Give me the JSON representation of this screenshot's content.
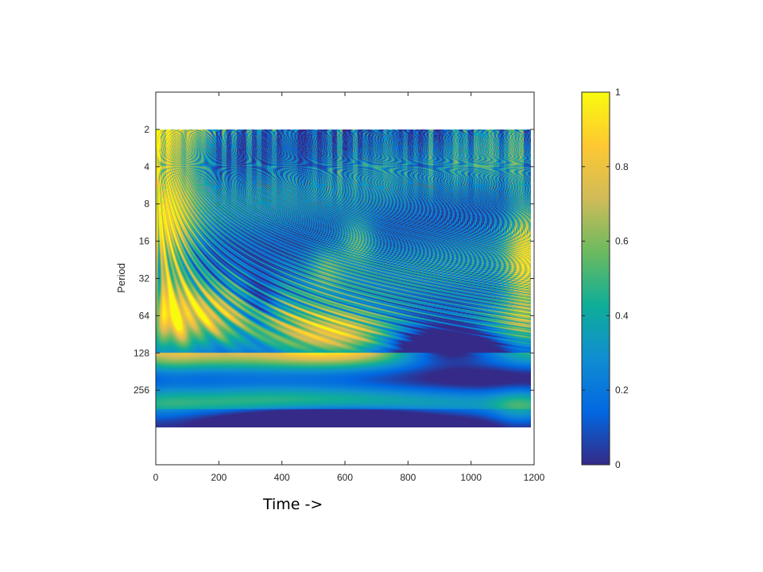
{
  "chart_data": {
    "type": "heatmap",
    "title": "",
    "xlabel": "Time ->",
    "ylabel": "Period",
    "x_range": [
      0,
      1200
    ],
    "x_ticks": [
      0,
      200,
      400,
      600,
      800,
      1000,
      1200
    ],
    "x_tick_labels": [
      "0",
      "200",
      "400",
      "600",
      "800",
      "1000",
      "1200"
    ],
    "y_scale": "log2",
    "y_range": [
      1,
      1024
    ],
    "y_ticks": [
      2,
      4,
      8,
      16,
      32,
      64,
      128,
      256
    ],
    "y_tick_labels": [
      "2",
      "4",
      "8",
      "16",
      "32",
      "64",
      "128",
      "256"
    ],
    "y_reversed": true,
    "data_extent": {
      "time": [
        0,
        1190
      ],
      "period": [
        2,
        512
      ]
    },
    "value_range": [
      0,
      1
    ],
    "colormap": "parula",
    "colormap_stops": [
      "#352a87",
      "#0268e1",
      "#108ed2",
      "#0fae99",
      "#6cba5f",
      "#d1bb59",
      "#fec832",
      "#f9fb0e"
    ],
    "colorbar": {
      "ticks": [
        0,
        0.2,
        0.4,
        0.6,
        0.8,
        1
      ],
      "tick_labels": [
        "0",
        "0.2",
        "0.4",
        "0.6",
        "0.8",
        "1"
      ]
    },
    "features": [
      {
        "description": "high coherence at left edge",
        "time": [
          0,
          150
        ],
        "period": [
          2,
          128
        ],
        "value": 1.0
      },
      {
        "description": "high coherence band",
        "time": [
          330,
          800
        ],
        "period": [
          64,
          128
        ],
        "value": 0.95
      },
      {
        "description": "right edge high",
        "time": [
          1120,
          1190
        ],
        "period": [
          8,
          64
        ],
        "value": 0.9
      },
      {
        "description": "low coherence trough",
        "time": [
          300,
          900
        ],
        "period": [
          400,
          512
        ],
        "value": 0.05
      },
      {
        "description": "low coherence arc",
        "time": [
          800,
          1190
        ],
        "period": [
          64,
          128
        ],
        "value": 0.05
      }
    ]
  }
}
